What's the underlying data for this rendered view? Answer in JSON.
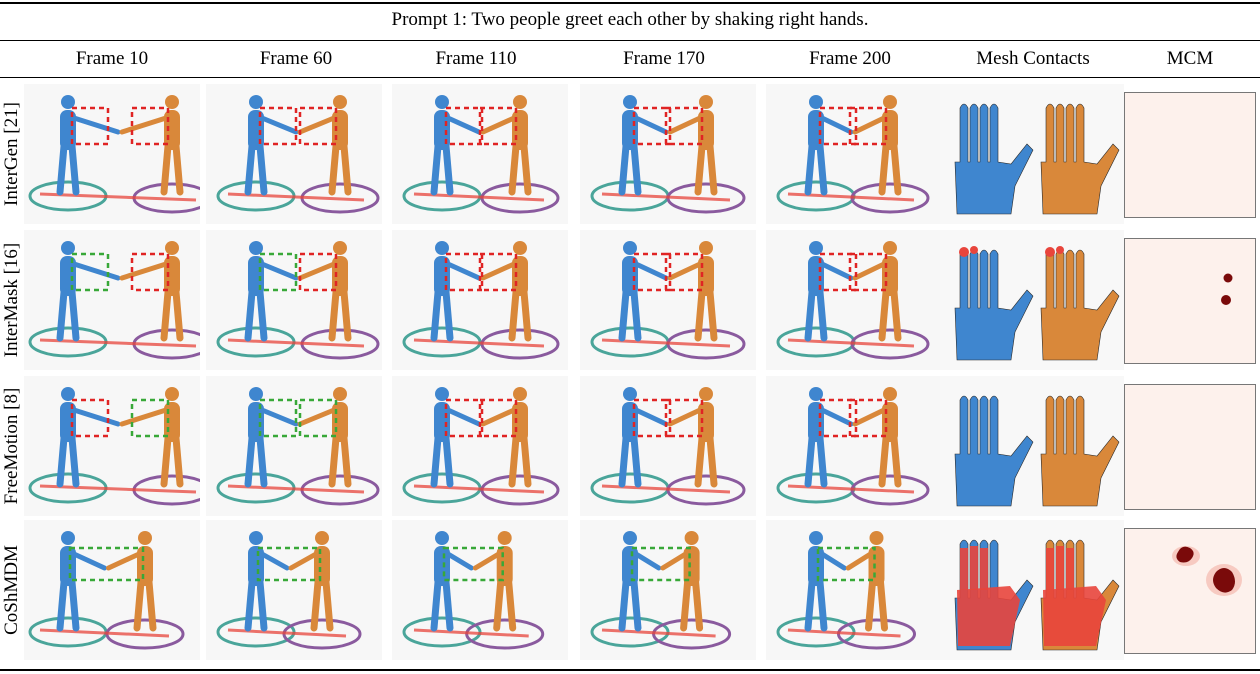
{
  "prompt": "Prompt 1: Two people greet each other by shaking right hands.",
  "columns": [
    "Frame 10",
    "Frame 60",
    "Frame 110",
    "Frame 170",
    "Frame 200",
    "Mesh Contacts",
    "MCM"
  ],
  "methods": [
    {
      "label": "InterGen [21]",
      "boxes": [
        "red",
        "red",
        "red",
        "red",
        "red",
        "red",
        "red",
        "red",
        "red",
        "red"
      ],
      "contacts": "none",
      "mcm": "empty"
    },
    {
      "label": "InterMask [16]",
      "boxes": [
        "green",
        "red",
        "green",
        "red",
        "red",
        "red",
        "red",
        "red",
        "red",
        "red"
      ],
      "contacts": "fingertips",
      "mcm": "two-dots"
    },
    {
      "label": "FreeMotion [8]",
      "boxes": [
        "red",
        "green",
        "green",
        "green",
        "red",
        "red",
        "red",
        "red",
        "red",
        "red"
      ],
      "contacts": "none",
      "mcm": "empty"
    },
    {
      "label": "CoShMDM",
      "boxes": [
        "green",
        "green",
        "green",
        "green",
        "green",
        "green",
        "green",
        "green",
        "green",
        "green"
      ],
      "contacts": "palm",
      "mcm": "blobs"
    }
  ],
  "colors": {
    "blue_person": "#3f86cf",
    "orange_person": "#d9883a",
    "teal_ring": "#4aa59a",
    "purple_ring": "#8a5a9e",
    "red_box": "#e02424",
    "green_box": "#38a838",
    "contact_red": "#e8453c",
    "mcm_blob": "#7a0a0a"
  }
}
